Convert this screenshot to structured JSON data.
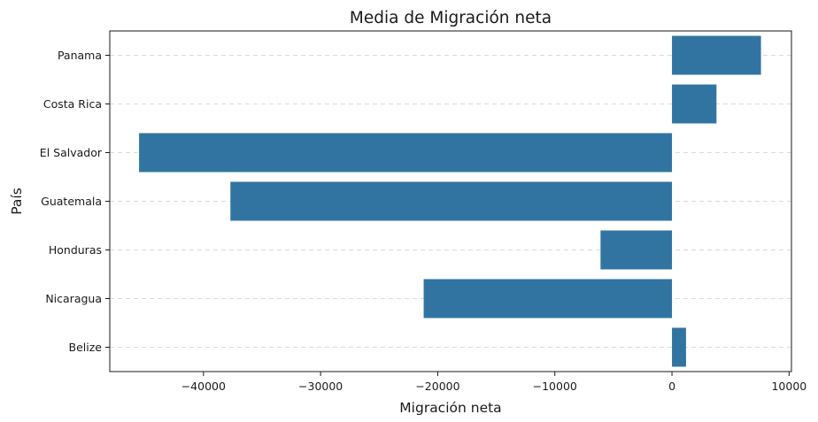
{
  "chart_data": {
    "type": "bar",
    "orientation": "horizontal",
    "title": "Media de Migración neta",
    "xlabel": "Migración neta",
    "ylabel": "País",
    "categories": [
      "Panama",
      "Costa Rica",
      "El Salvador",
      "Guatemala",
      "Honduras",
      "Nicaragua",
      "Belize"
    ],
    "values": [
      7600,
      3800,
      -45500,
      -37700,
      -6100,
      -21200,
      1200
    ],
    "xlim": [
      -48000,
      10200
    ],
    "xticks": [
      -40000,
      -30000,
      -20000,
      -10000,
      0,
      10000
    ],
    "xtick_labels": [
      "−40000",
      "−30000",
      "−20000",
      "−10000",
      "0",
      "10000"
    ],
    "grid": "y-dashed",
    "bar_color": "#3274a1"
  }
}
